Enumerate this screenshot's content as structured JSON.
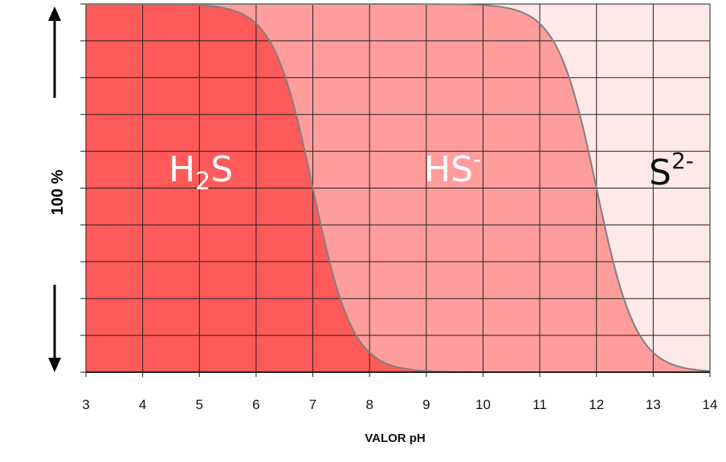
{
  "chart_data": {
    "type": "area",
    "xlabel": "VALOR pH",
    "ylabel": "100 %",
    "x_ticks": [
      3,
      4,
      5,
      6,
      7,
      8,
      9,
      10,
      11,
      12,
      13,
      14
    ],
    "xlim": [
      3,
      14
    ],
    "ylim": [
      0,
      100
    ],
    "grid": true,
    "pKa1": 7.0,
    "pKa2": 12.0,
    "series": [
      {
        "base": "H",
        "sub": "2",
        "tail": "S",
        "sup": "",
        "color": "#ff5a5a",
        "text_color": "#ffffff"
      },
      {
        "base": "HS",
        "sub": "",
        "tail": "",
        "sup": "-",
        "color": "#ff9c9c",
        "text_color": "#ffffff"
      },
      {
        "base": "S",
        "sub": "",
        "tail": "",
        "sup": "2-",
        "color": "#ffe8e8",
        "text_color": "#111111"
      }
    ],
    "curve_color": "#808080",
    "grid_color": "#222222"
  }
}
